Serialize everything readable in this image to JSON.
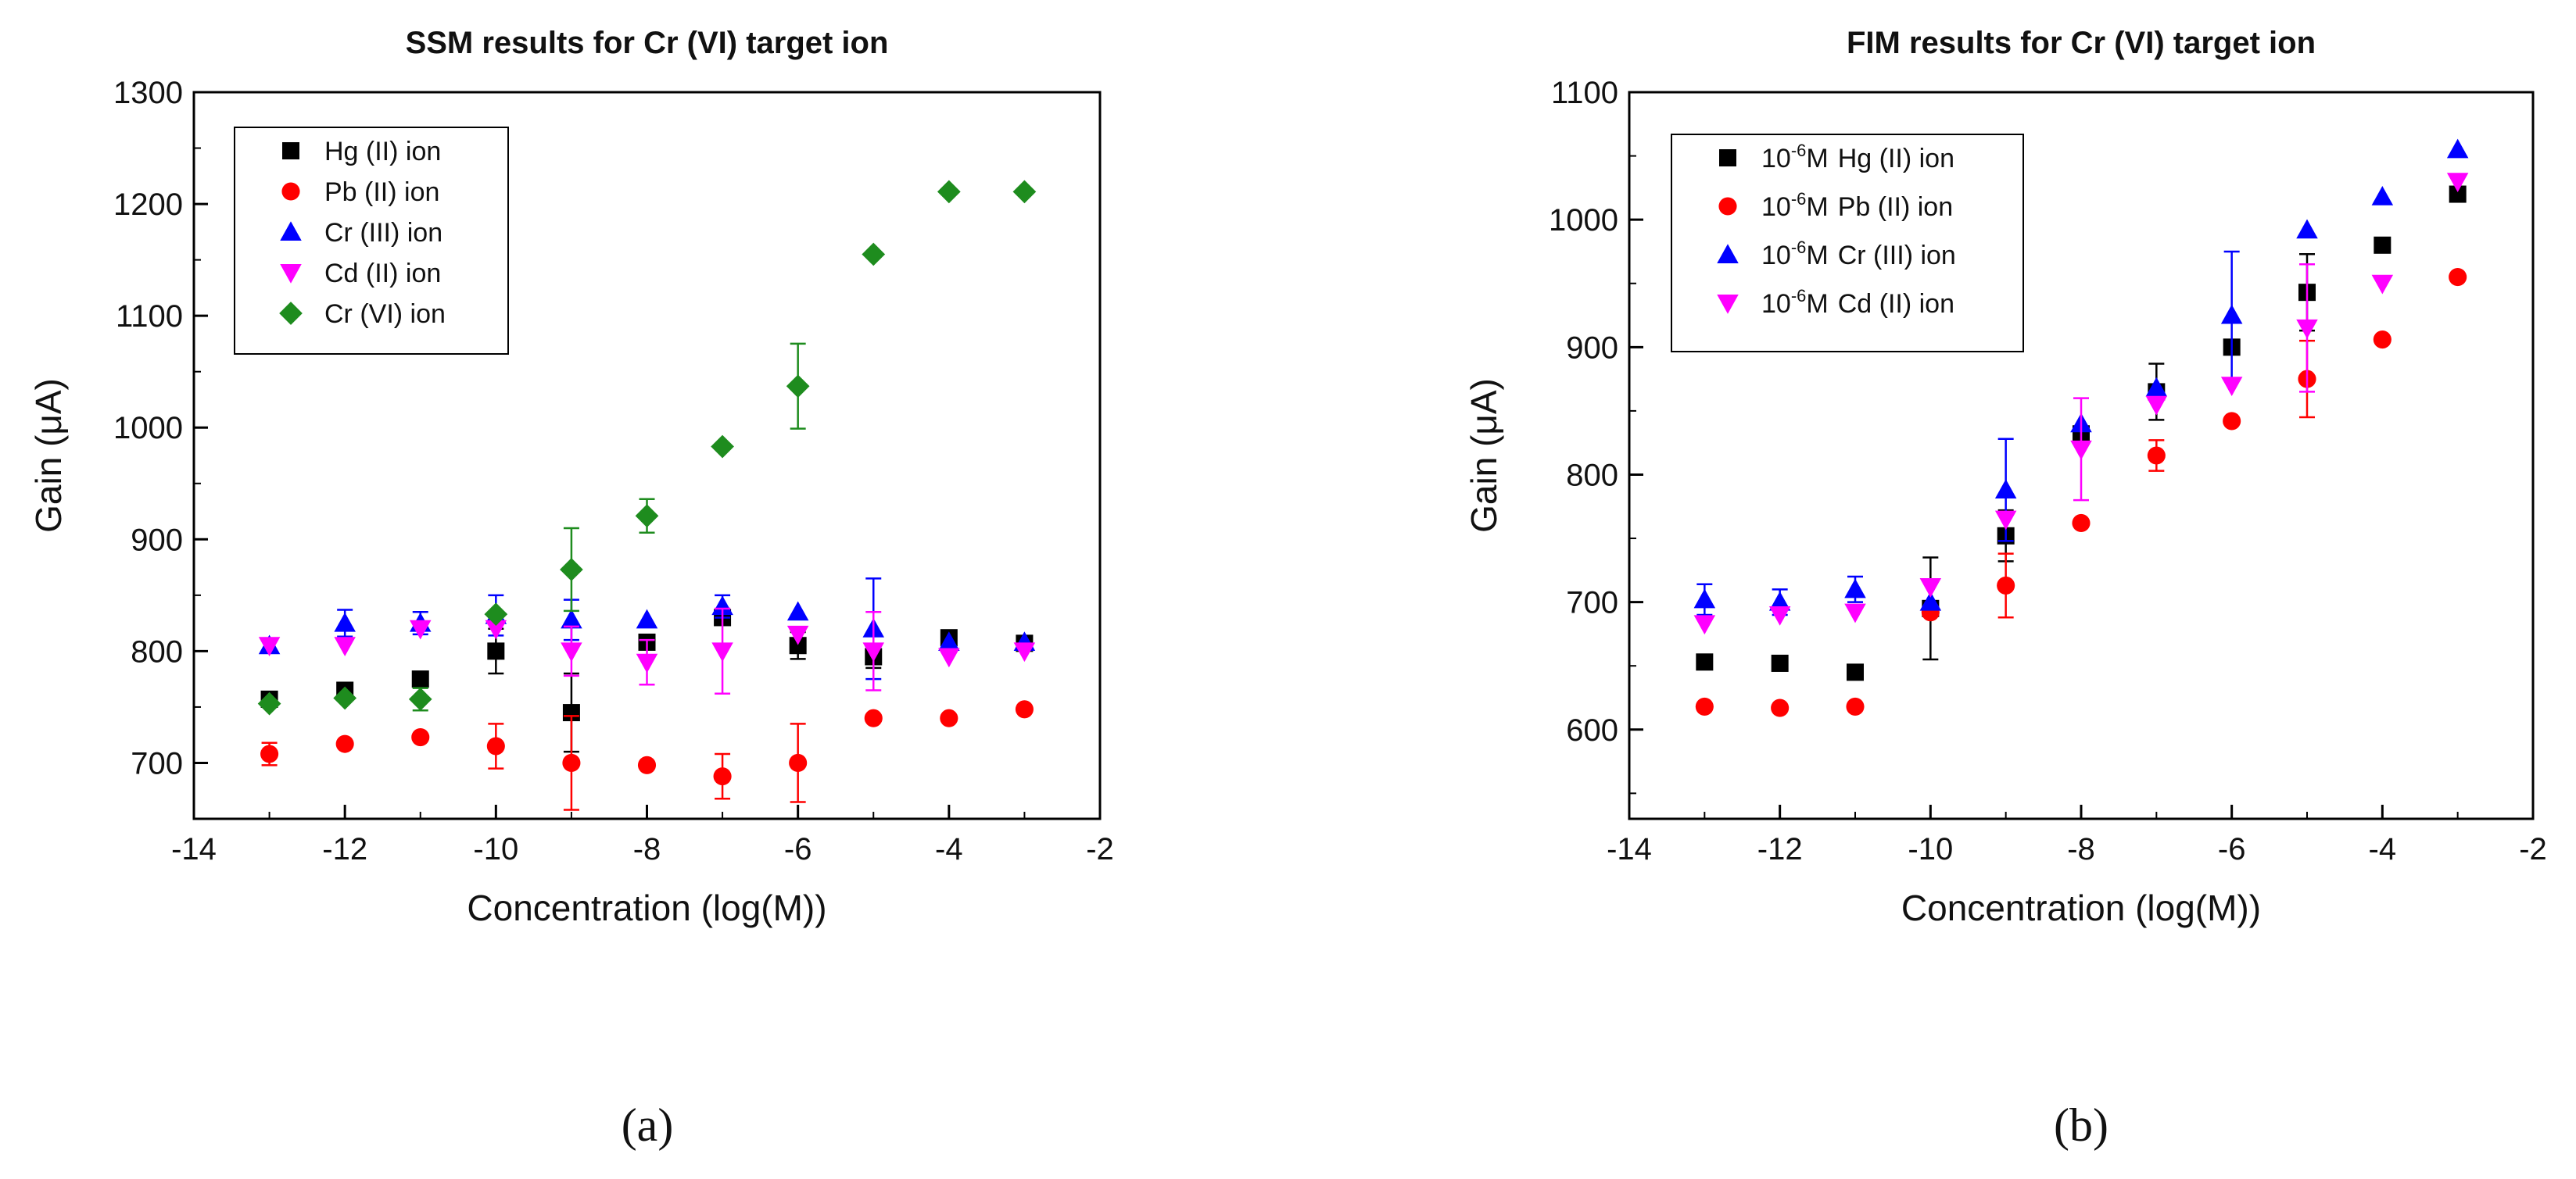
{
  "chart_data": [
    {
      "type": "scatter",
      "title": "SSM results for Cr (VI) target ion",
      "xlabel": "Concentration (log(M))",
      "ylabel": "Gain (μA)",
      "panel_label": "(a)",
      "xlim": [
        -14,
        -2
      ],
      "ylim": [
        650,
        1300
      ],
      "xticks": [
        -14,
        -12,
        -10,
        -8,
        -6,
        -4,
        -2
      ],
      "yticks": [
        700,
        800,
        900,
        1000,
        1100,
        1200,
        1300
      ],
      "legend_position": "top-left",
      "series": [
        {
          "name": "Hg (II) ion",
          "marker": "square",
          "color": "#000000",
          "x": [
            -13,
            -12,
            -11,
            -10,
            -9,
            -8,
            -7,
            -6,
            -5,
            -4,
            -3
          ],
          "y": [
            757,
            765,
            775,
            800,
            745,
            808,
            830,
            805,
            795,
            812,
            807
          ],
          "err": [
            0,
            0,
            0,
            20,
            35,
            0,
            0,
            12,
            10,
            0,
            0
          ]
        },
        {
          "name": "Pb (II) ion",
          "marker": "circle",
          "color": "#ff0000",
          "x": [
            -13,
            -12,
            -11,
            -10,
            -9,
            -8,
            -7,
            -6,
            -5,
            -4,
            -3
          ],
          "y": [
            708,
            717,
            723,
            715,
            700,
            698,
            688,
            700,
            740,
            740,
            748
          ],
          "err": [
            10,
            0,
            0,
            20,
            42,
            0,
            20,
            35,
            0,
            0,
            0
          ]
        },
        {
          "name": "Cr (III) ion",
          "marker": "triangle-up",
          "color": "#0000ff",
          "x": [
            -13,
            -12,
            -11,
            -10,
            -9,
            -8,
            -7,
            -6,
            -5,
            -4,
            -3
          ],
          "y": [
            805,
            825,
            825,
            832,
            828,
            828,
            840,
            835,
            820,
            808,
            808
          ],
          "err": [
            0,
            12,
            10,
            18,
            18,
            0,
            10,
            0,
            45,
            0,
            0
          ]
        },
        {
          "name": "Cd (II) ion",
          "marker": "triangle-down",
          "color": "#ff00ff",
          "x": [
            -13,
            -12,
            -11,
            -10,
            -9,
            -8,
            -7,
            -6,
            -5,
            -4,
            -3
          ],
          "y": [
            805,
            805,
            820,
            820,
            800,
            790,
            800,
            815,
            800,
            795,
            800
          ],
          "err": [
            0,
            0,
            0,
            0,
            22,
            20,
            38,
            0,
            35,
            0,
            0
          ]
        },
        {
          "name": "Cr (VI) ion",
          "marker": "diamond",
          "color": "#1e8c1e",
          "x": [
            -13,
            -12,
            -11,
            -10,
            -9,
            -8,
            -7,
            -6,
            -5,
            -4,
            -3
          ],
          "y": [
            753,
            758,
            757,
            833,
            873,
            921,
            983,
            1037,
            1155,
            1211,
            1211
          ],
          "err": [
            0,
            0,
            10,
            0,
            37,
            15,
            0,
            38,
            0,
            0,
            0
          ]
        }
      ]
    },
    {
      "type": "scatter",
      "title": "FIM results for Cr (VI) target ion",
      "xlabel": "Concentration (log(M))",
      "ylabel": "Gain (μA)",
      "panel_label": "(b)",
      "xlim": [
        -14,
        -2
      ],
      "ylim": [
        530,
        1100
      ],
      "xticks": [
        -14,
        -12,
        -10,
        -8,
        -6,
        -4,
        -2
      ],
      "yticks": [
        600,
        700,
        800,
        900,
        1000,
        1100
      ],
      "legend_position": "top-left",
      "series": [
        {
          "name": "Hg (II) ion",
          "legend_prefix": "10",
          "legend_exp": "-6",
          "legend_unit": "M",
          "marker": "square",
          "color": "#000000",
          "x": [
            -13,
            -12,
            -11,
            -10,
            -9,
            -8,
            -7,
            -6,
            -5,
            -4,
            -3
          ],
          "y": [
            653,
            652,
            645,
            695,
            752,
            832,
            865,
            900,
            943,
            980,
            1020
          ],
          "err": [
            0,
            0,
            0,
            40,
            20,
            0,
            22,
            0,
            30,
            0,
            0
          ]
        },
        {
          "name": "Pb (II) ion",
          "legend_prefix": "10",
          "legend_exp": "-6",
          "legend_unit": "M",
          "marker": "circle",
          "color": "#ff0000",
          "x": [
            -13,
            -12,
            -11,
            -10,
            -9,
            -8,
            -7,
            -6,
            -5,
            -4,
            -3
          ],
          "y": [
            618,
            617,
            618,
            692,
            713,
            762,
            815,
            842,
            875,
            906,
            955
          ],
          "err": [
            0,
            0,
            0,
            0,
            25,
            0,
            12,
            0,
            30,
            0,
            0
          ]
        },
        {
          "name": "Cr (III) ion",
          "legend_prefix": "10",
          "legend_exp": "-6",
          "legend_unit": "M",
          "marker": "triangle-up",
          "color": "#0000ff",
          "x": [
            -13,
            -12,
            -11,
            -10,
            -9,
            -8,
            -7,
            -6,
            -5,
            -4,
            -3
          ],
          "y": [
            702,
            700,
            710,
            700,
            788,
            840,
            868,
            925,
            992,
            1018,
            1055
          ],
          "err": [
            12,
            10,
            10,
            0,
            40,
            0,
            0,
            50,
            0,
            0,
            0
          ]
        },
        {
          "name": "Cd (II) ion",
          "legend_prefix": "10",
          "legend_exp": "-6",
          "legend_unit": "M",
          "marker": "triangle-down",
          "color": "#ff00ff",
          "x": [
            -13,
            -12,
            -11,
            -10,
            -9,
            -8,
            -7,
            -6,
            -5,
            -4,
            -3
          ],
          "y": [
            683,
            690,
            692,
            712,
            765,
            820,
            855,
            870,
            915,
            950,
            1030
          ],
          "err": [
            0,
            0,
            0,
            0,
            0,
            40,
            0,
            0,
            50,
            0,
            0
          ]
        }
      ]
    }
  ]
}
